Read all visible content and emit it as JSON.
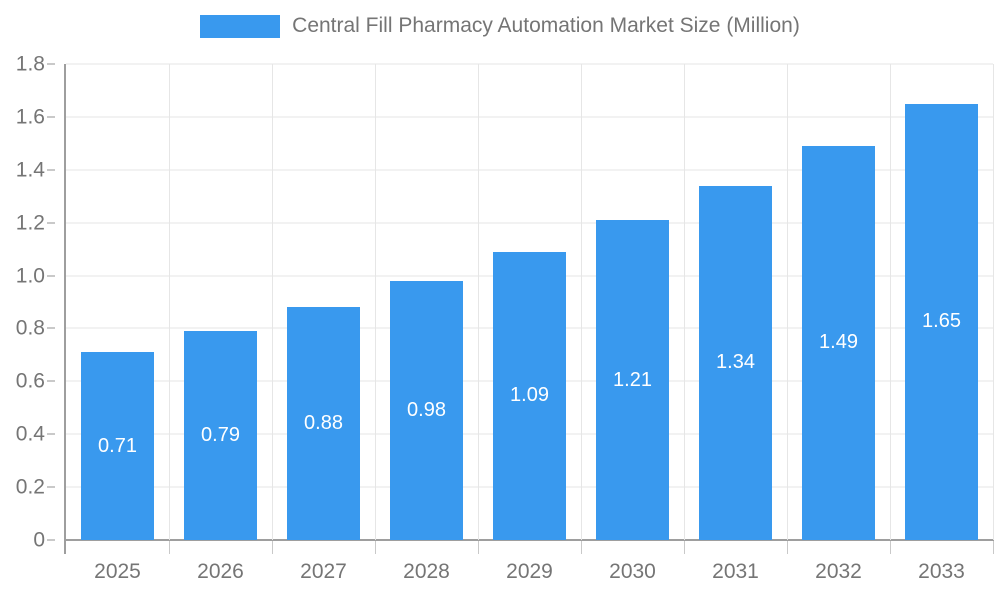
{
  "chart_data": {
    "type": "bar",
    "title": "Central Fill Pharmacy Automation Market Size (Million)",
    "categories": [
      "2025",
      "2026",
      "2027",
      "2028",
      "2029",
      "2030",
      "2031",
      "2032",
      "2033"
    ],
    "values": [
      0.71,
      0.79,
      0.88,
      0.98,
      1.09,
      1.21,
      1.34,
      1.49,
      1.65
    ],
    "value_labels": [
      "0.71",
      "0.79",
      "0.88",
      "0.98",
      "1.09",
      "1.21",
      "1.34",
      "1.49",
      "1.65"
    ],
    "xlabel": "",
    "ylabel": "",
    "ylim": [
      0,
      1.8
    ],
    "ytick_step": 0.2,
    "ytick_labels": [
      "0",
      "0.2",
      "0.4",
      "0.6",
      "0.8",
      "1.0",
      "1.2",
      "1.4",
      "1.6",
      "1.8"
    ],
    "grid": true,
    "legend_position": "top",
    "colors": {
      "bar": "#3999EE",
      "axis_line": "#9E9E9E",
      "grid": "#E6E6E6",
      "tick": "#C9C9C9",
      "label": "#757575",
      "value_label": "#FFFFFF",
      "background": "#FFFFFF"
    }
  }
}
